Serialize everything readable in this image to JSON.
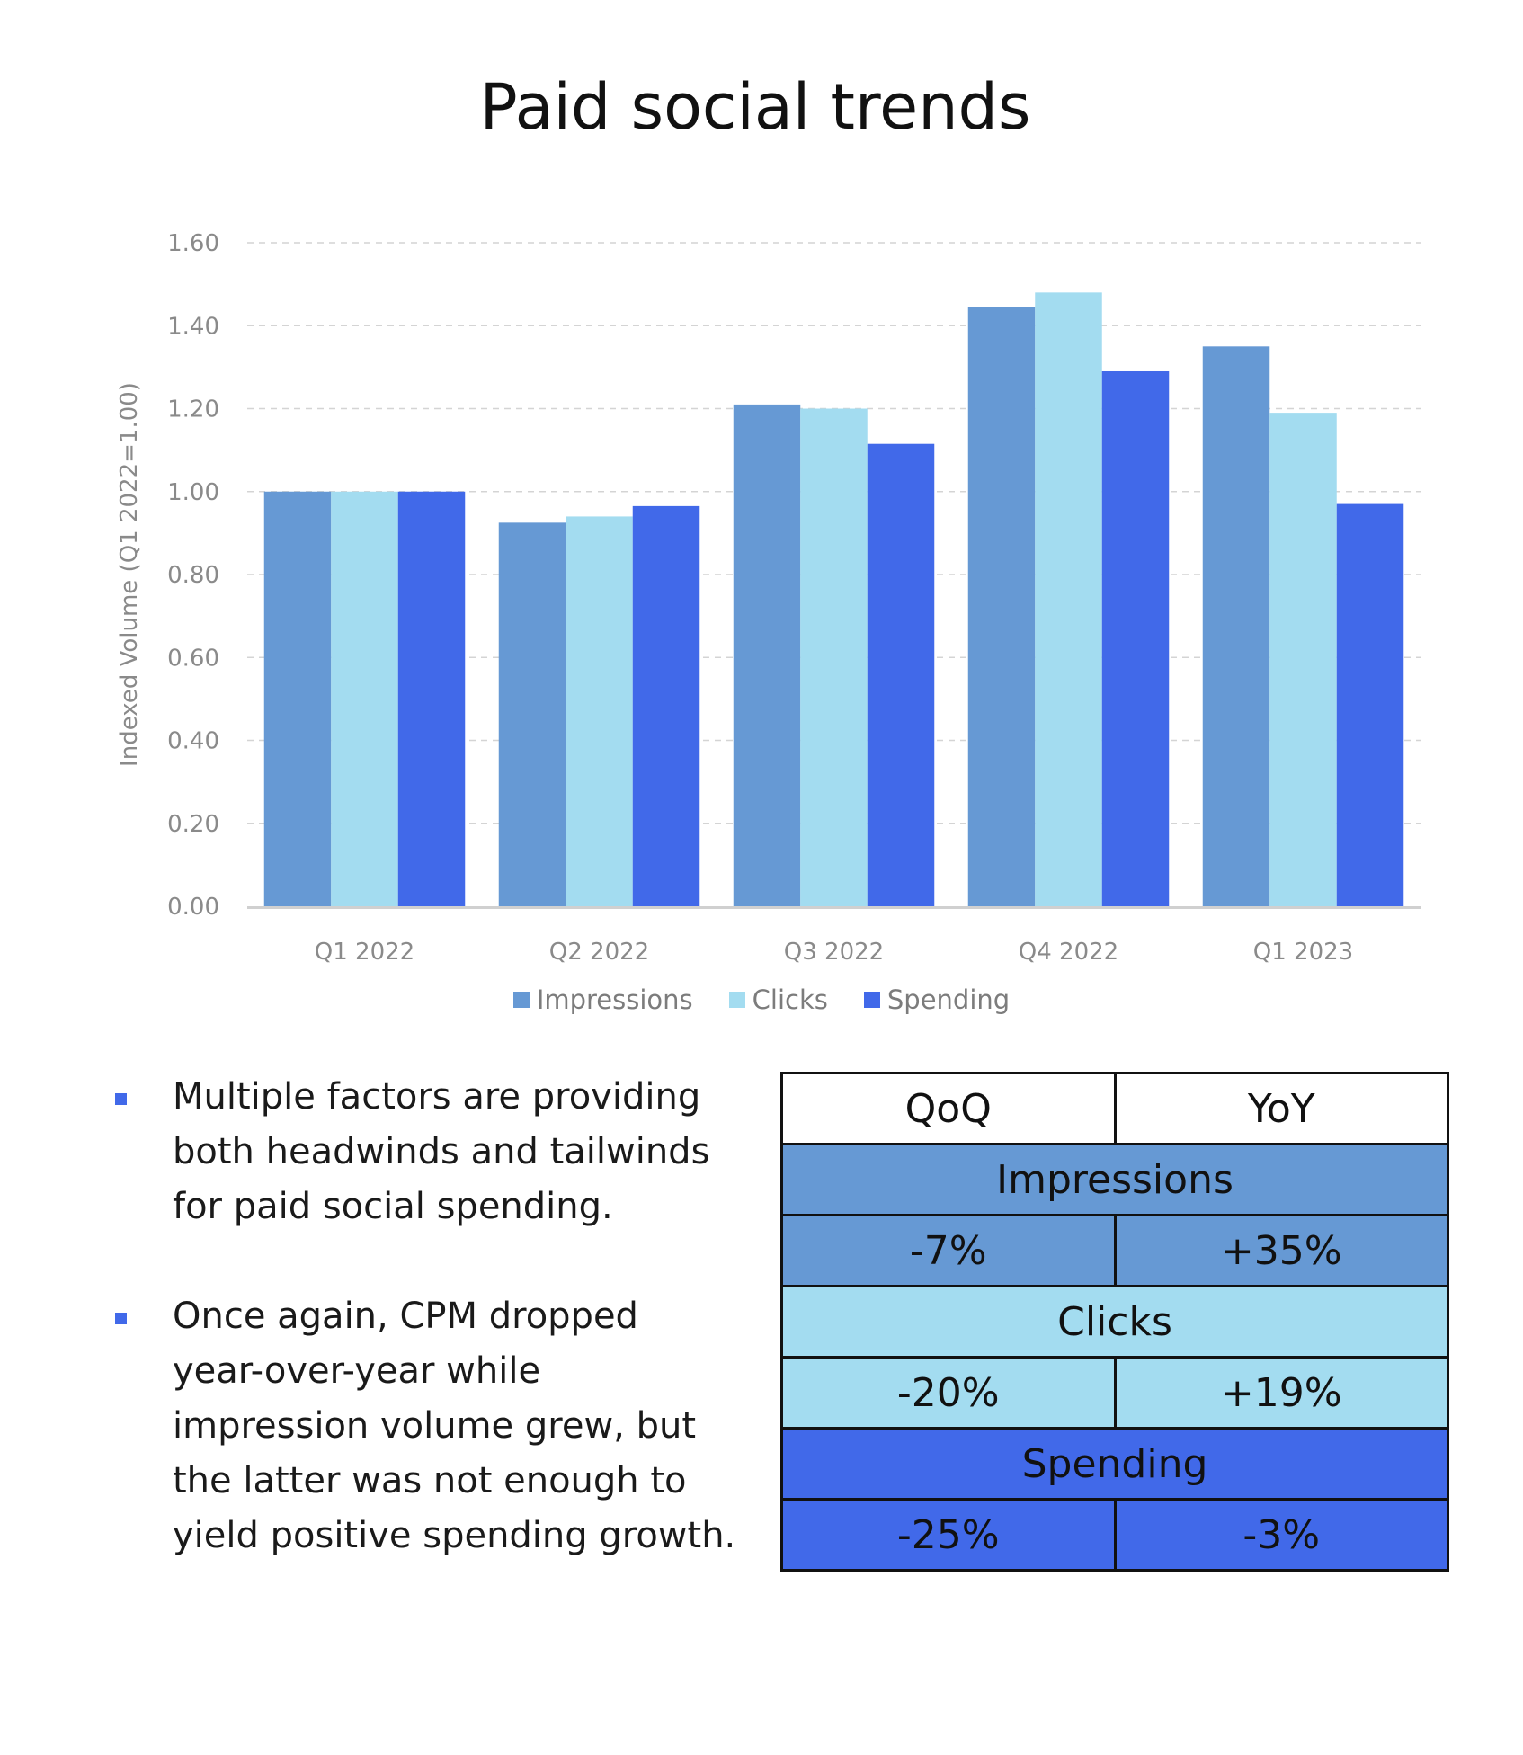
{
  "title": "Paid social trends",
  "chart_data": {
    "type": "bar",
    "title": "Paid social trends",
    "xlabel": "",
    "ylabel": "Indexed Volume (Q1 2022=1.00)",
    "ylim": [
      0,
      1.6
    ],
    "yticks": [
      "0.00",
      "0.20",
      "0.40",
      "0.60",
      "0.80",
      "1.00",
      "1.20",
      "1.40",
      "1.60"
    ],
    "grid": true,
    "legend_position": "bottom",
    "categories": [
      "Q1 2022",
      "Q2 2022",
      "Q3 2022",
      "Q4 2022",
      "Q1 2023"
    ],
    "series": [
      {
        "name": "Impressions",
        "color": "#6699d4",
        "values": [
          1.0,
          0.925,
          1.21,
          1.445,
          1.35
        ]
      },
      {
        "name": "Clicks",
        "color": "#a3dcf0",
        "values": [
          1.0,
          0.94,
          1.2,
          1.48,
          1.19
        ]
      },
      {
        "name": "Spending",
        "color": "#4169e9",
        "values": [
          1.0,
          0.965,
          1.115,
          1.29,
          0.97
        ]
      }
    ]
  },
  "notes": [
    "Multiple factors are providing both headwinds and tailwinds for paid social spending.",
    "Once again, CPM dropped year-over-year while impression volume grew, but the latter was not enough to yield positive spending growth."
  ],
  "table": {
    "headers": [
      "QoQ",
      "YoY"
    ],
    "rows": [
      {
        "metric": "Impressions",
        "qoq": "-7%",
        "yoy": "+35%"
      },
      {
        "metric": "Clicks",
        "qoq": "-20%",
        "yoy": "+19%"
      },
      {
        "metric": "Spending",
        "qoq": "-25%",
        "yoy": "-3%"
      }
    ]
  }
}
